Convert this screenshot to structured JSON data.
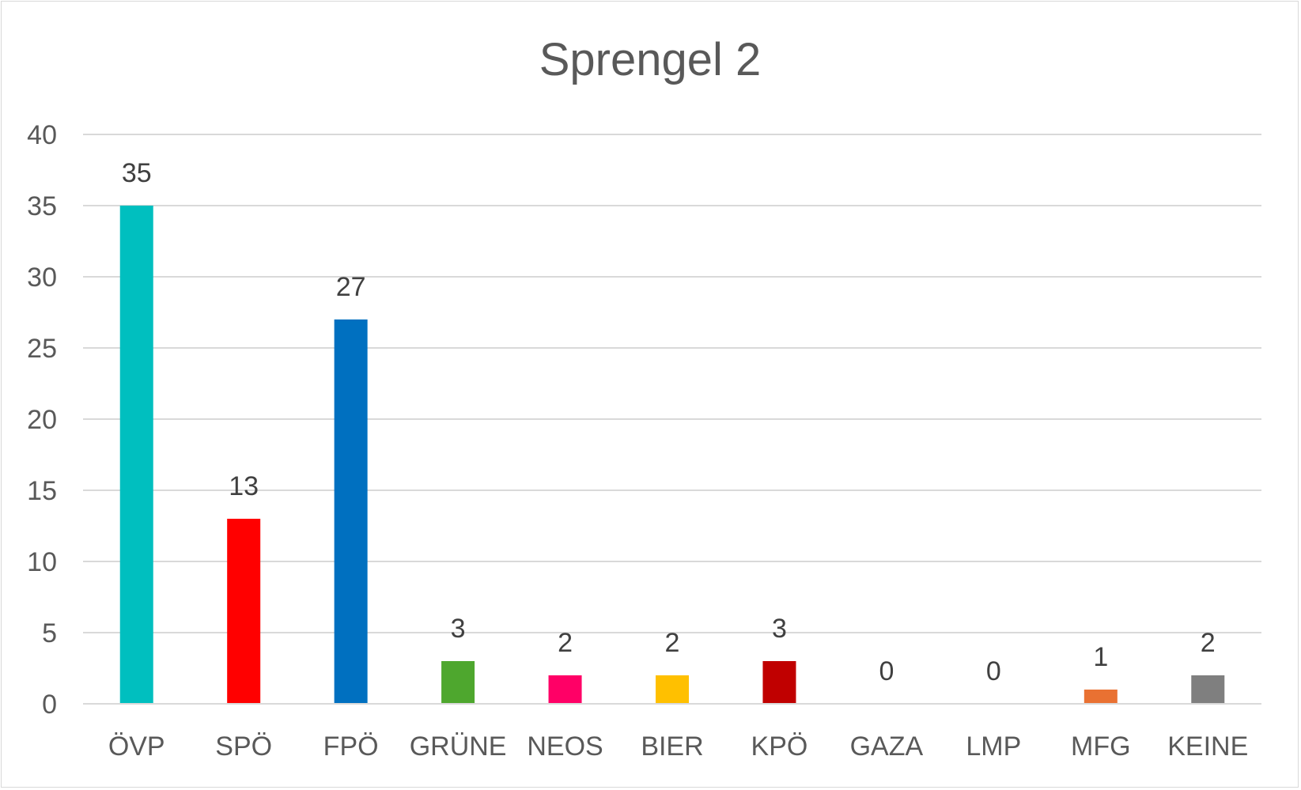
{
  "chart_data": {
    "type": "bar",
    "title": "Sprengel 2",
    "xlabel": "",
    "ylabel": "",
    "ylim": [
      0,
      40
    ],
    "yticks": [
      "0",
      "5",
      "10",
      "15",
      "20",
      "25",
      "30",
      "35",
      "40"
    ],
    "grid": true,
    "legend": "none",
    "categories": [
      "ÖVP",
      "SPÖ",
      "FPÖ",
      "GRÜNE",
      "NEOS",
      "BIER",
      "KPÖ",
      "GAZA",
      "LMP",
      "MFG",
      "KEINE"
    ],
    "values": [
      35,
      13,
      27,
      3,
      2,
      2,
      3,
      0,
      0,
      1,
      2
    ],
    "data_labels": [
      "35",
      "13",
      "27",
      "3",
      "2",
      "2",
      "3",
      "0",
      "0",
      "1",
      "2"
    ],
    "colors": [
      "#00BFBF",
      "#FF0000",
      "#0070C0",
      "#4EA72E",
      "#FF0066",
      "#FFC000",
      "#C00000",
      "#A6A6A6",
      "#A6A6A6",
      "#E97132",
      "#7F7F7F"
    ]
  }
}
